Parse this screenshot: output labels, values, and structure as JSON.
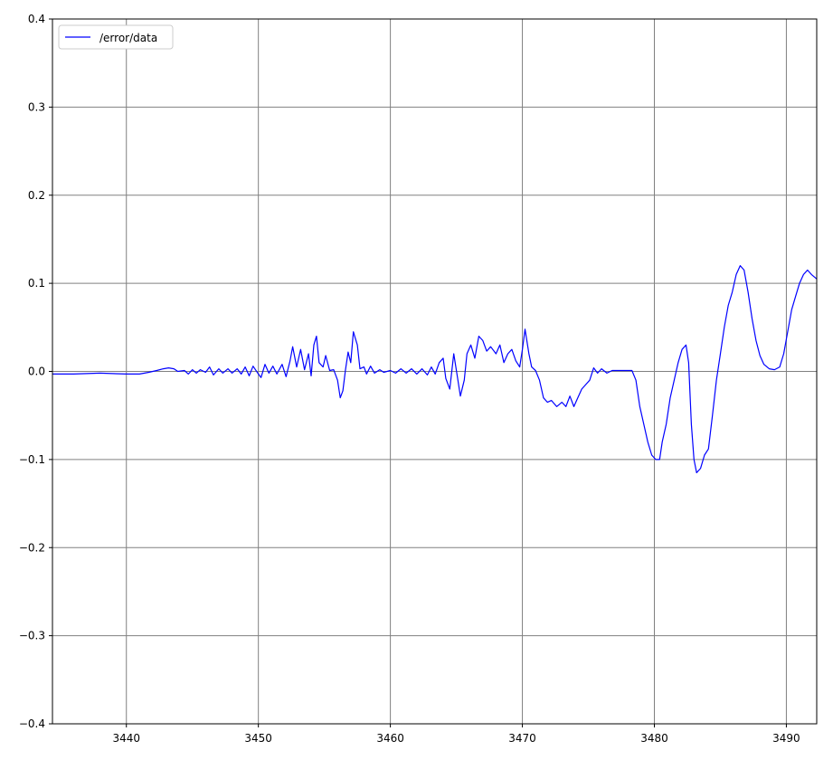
{
  "chart_data": {
    "type": "line",
    "title": "",
    "xlabel": "",
    "ylabel": "",
    "xlim": [
      3434.4,
      3492.3
    ],
    "ylim": [
      -0.4,
      0.4
    ],
    "xticks": [
      3440,
      3450,
      3460,
      3470,
      3480,
      3490
    ],
    "yticks": [
      -0.4,
      -0.3,
      -0.2,
      -0.1,
      0.0,
      0.1,
      0.2,
      0.3,
      0.4
    ],
    "ytick_labels": [
      "−0.4",
      "−0.3",
      "−0.2",
      "−0.1",
      "0.0",
      "0.1",
      "0.2",
      "0.3",
      "0.4"
    ],
    "grid": true,
    "legend_position": "top-left",
    "series": [
      {
        "name": "/error/data",
        "color": "#0000ff",
        "points": [
          [
            3434.4,
            -0.003
          ],
          [
            3436.0,
            -0.003
          ],
          [
            3438.0,
            -0.002
          ],
          [
            3440.0,
            -0.003
          ],
          [
            3441.0,
            -0.003
          ],
          [
            3441.7,
            -0.001
          ],
          [
            3442.3,
            0.001
          ],
          [
            3442.8,
            0.003
          ],
          [
            3443.2,
            0.004
          ],
          [
            3443.6,
            0.003
          ],
          [
            3443.9,
            0.0
          ],
          [
            3444.4,
            0.001
          ],
          [
            3444.7,
            -0.003
          ],
          [
            3445.0,
            0.002
          ],
          [
            3445.3,
            -0.002
          ],
          [
            3445.6,
            0.002
          ],
          [
            3446.0,
            -0.001
          ],
          [
            3446.3,
            0.005
          ],
          [
            3446.6,
            -0.004
          ],
          [
            3447.0,
            0.003
          ],
          [
            3447.3,
            -0.002
          ],
          [
            3447.7,
            0.003
          ],
          [
            3448.0,
            -0.002
          ],
          [
            3448.4,
            0.003
          ],
          [
            3448.7,
            -0.003
          ],
          [
            3449.0,
            0.005
          ],
          [
            3449.3,
            -0.005
          ],
          [
            3449.6,
            0.006
          ],
          [
            3450.0,
            -0.003
          ],
          [
            3450.2,
            -0.007
          ],
          [
            3450.5,
            0.008
          ],
          [
            3450.8,
            -0.002
          ],
          [
            3451.1,
            0.006
          ],
          [
            3451.4,
            -0.003
          ],
          [
            3451.8,
            0.008
          ],
          [
            3452.1,
            -0.006
          ],
          [
            3452.4,
            0.012
          ],
          [
            3452.6,
            0.028
          ],
          [
            3452.9,
            0.005
          ],
          [
            3453.2,
            0.025
          ],
          [
            3453.5,
            0.002
          ],
          [
            3453.8,
            0.02
          ],
          [
            3454.0,
            -0.005
          ],
          [
            3454.2,
            0.03
          ],
          [
            3454.4,
            0.04
          ],
          [
            3454.6,
            0.01
          ],
          [
            3454.9,
            0.005
          ],
          [
            3455.1,
            0.018
          ],
          [
            3455.4,
            0.001
          ],
          [
            3455.7,
            0.002
          ],
          [
            3456.0,
            -0.01
          ],
          [
            3456.2,
            -0.03
          ],
          [
            3456.4,
            -0.022
          ],
          [
            3456.6,
            0.002
          ],
          [
            3456.8,
            0.022
          ],
          [
            3457.0,
            0.01
          ],
          [
            3457.2,
            0.045
          ],
          [
            3457.5,
            0.03
          ],
          [
            3457.7,
            0.003
          ],
          [
            3458.0,
            0.005
          ],
          [
            3458.2,
            -0.003
          ],
          [
            3458.5,
            0.006
          ],
          [
            3458.8,
            -0.002
          ],
          [
            3459.2,
            0.002
          ],
          [
            3459.5,
            -0.001
          ],
          [
            3460.0,
            0.001
          ],
          [
            3460.4,
            -0.002
          ],
          [
            3460.8,
            0.003
          ],
          [
            3461.2,
            -0.002
          ],
          [
            3461.6,
            0.003
          ],
          [
            3462.0,
            -0.003
          ],
          [
            3462.4,
            0.003
          ],
          [
            3462.8,
            -0.004
          ],
          [
            3463.1,
            0.005
          ],
          [
            3463.4,
            -0.003
          ],
          [
            3463.7,
            0.01
          ],
          [
            3464.0,
            0.015
          ],
          [
            3464.2,
            -0.008
          ],
          [
            3464.5,
            -0.02
          ],
          [
            3464.8,
            0.02
          ],
          [
            3465.1,
            -0.008
          ],
          [
            3465.3,
            -0.028
          ],
          [
            3465.6,
            -0.01
          ],
          [
            3465.8,
            0.02
          ],
          [
            3466.1,
            0.03
          ],
          [
            3466.4,
            0.015
          ],
          [
            3466.7,
            0.04
          ],
          [
            3467.0,
            0.035
          ],
          [
            3467.3,
            0.023
          ],
          [
            3467.6,
            0.028
          ],
          [
            3468.0,
            0.02
          ],
          [
            3468.3,
            0.03
          ],
          [
            3468.6,
            0.01
          ],
          [
            3468.9,
            0.02
          ],
          [
            3469.2,
            0.025
          ],
          [
            3469.5,
            0.012
          ],
          [
            3469.8,
            0.005
          ],
          [
            3470.0,
            0.025
          ],
          [
            3470.2,
            0.048
          ],
          [
            3470.5,
            0.02
          ],
          [
            3470.7,
            0.005
          ],
          [
            3471.0,
            0.001
          ],
          [
            3471.3,
            -0.01
          ],
          [
            3471.6,
            -0.03
          ],
          [
            3471.9,
            -0.035
          ],
          [
            3472.2,
            -0.033
          ],
          [
            3472.6,
            -0.04
          ],
          [
            3473.0,
            -0.035
          ],
          [
            3473.3,
            -0.04
          ],
          [
            3473.6,
            -0.028
          ],
          [
            3473.9,
            -0.04
          ],
          [
            3474.2,
            -0.03
          ],
          [
            3474.5,
            -0.02
          ],
          [
            3474.8,
            -0.015
          ],
          [
            3475.1,
            -0.01
          ],
          [
            3475.4,
            0.004
          ],
          [
            3475.7,
            -0.002
          ],
          [
            3476.0,
            0.003
          ],
          [
            3476.4,
            -0.002
          ],
          [
            3476.8,
            0.001
          ],
          [
            3477.3,
            0.001
          ],
          [
            3477.8,
            0.001
          ],
          [
            3478.3,
            0.001
          ],
          [
            3478.6,
            -0.01
          ],
          [
            3478.9,
            -0.04
          ],
          [
            3479.2,
            -0.06
          ],
          [
            3479.5,
            -0.08
          ],
          [
            3479.8,
            -0.095
          ],
          [
            3480.1,
            -0.1
          ],
          [
            3480.4,
            -0.1
          ],
          [
            3480.6,
            -0.08
          ],
          [
            3480.9,
            -0.06
          ],
          [
            3481.2,
            -0.03
          ],
          [
            3481.5,
            -0.01
          ],
          [
            3481.8,
            0.01
          ],
          [
            3482.1,
            0.025
          ],
          [
            3482.4,
            0.03
          ],
          [
            3482.6,
            0.01
          ],
          [
            3482.8,
            -0.06
          ],
          [
            3483.0,
            -0.1
          ],
          [
            3483.2,
            -0.115
          ],
          [
            3483.5,
            -0.11
          ],
          [
            3483.8,
            -0.095
          ],
          [
            3484.1,
            -0.088
          ],
          [
            3484.4,
            -0.05
          ],
          [
            3484.7,
            -0.01
          ],
          [
            3485.0,
            0.02
          ],
          [
            3485.3,
            0.05
          ],
          [
            3485.6,
            0.075
          ],
          [
            3485.9,
            0.09
          ],
          [
            3486.2,
            0.11
          ],
          [
            3486.5,
            0.12
          ],
          [
            3486.8,
            0.115
          ],
          [
            3487.1,
            0.09
          ],
          [
            3487.4,
            0.06
          ],
          [
            3487.7,
            0.035
          ],
          [
            3488.0,
            0.018
          ],
          [
            3488.3,
            0.008
          ],
          [
            3488.7,
            0.003
          ],
          [
            3489.1,
            0.002
          ],
          [
            3489.5,
            0.005
          ],
          [
            3489.8,
            0.02
          ],
          [
            3490.1,
            0.045
          ],
          [
            3490.4,
            0.07
          ],
          [
            3490.7,
            0.085
          ],
          [
            3491.0,
            0.1
          ],
          [
            3491.3,
            0.11
          ],
          [
            3491.6,
            0.115
          ],
          [
            3491.9,
            0.11
          ],
          [
            3492.3,
            0.105
          ]
        ]
      }
    ]
  }
}
